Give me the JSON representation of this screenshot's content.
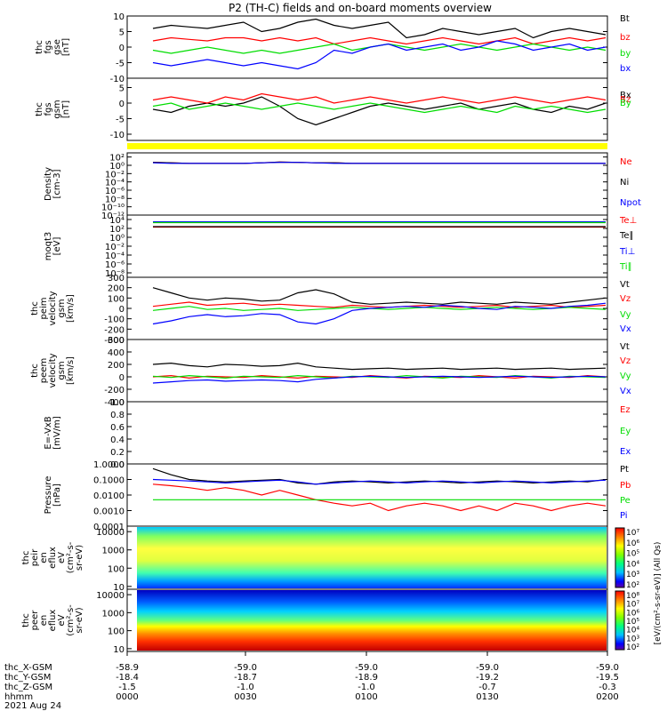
{
  "title": "P2 (TH-C) fields and on-board moments overview",
  "colors": {
    "black": "#000000",
    "red": "#ff0000",
    "green": "#00dd00",
    "blue": "#0000ff",
    "yellow": "#ffff00"
  },
  "chart_data": [
    {
      "type": "line",
      "ylabel": [
        "thc",
        "fgs",
        "gse",
        "[nT]"
      ],
      "ylim": [
        -10,
        10
      ],
      "log": false,
      "yticks": [
        "10",
        "5",
        "0",
        "-5",
        "-10"
      ],
      "yticks_val": [
        10,
        5,
        0,
        -5,
        -10
      ],
      "series": [
        {
          "name": "Bt",
          "color": "#000000",
          "values": [
            6,
            7,
            6.5,
            6,
            7,
            8,
            5,
            6,
            8,
            9,
            7,
            6,
            7,
            8,
            3,
            4,
            6,
            5,
            4,
            5,
            6,
            3,
            5,
            6,
            5,
            4
          ]
        },
        {
          "name": "bz",
          "color": "#ff0000",
          "values": [
            2,
            3,
            2.5,
            2,
            3,
            3,
            2,
            3,
            2,
            3,
            1,
            2,
            3,
            2,
            1,
            2,
            3,
            2,
            1,
            2,
            3,
            1,
            2,
            3,
            2,
            3
          ]
        },
        {
          "name": "by",
          "color": "#00dd00",
          "values": [
            -1,
            -2,
            -1,
            0,
            -1,
            -2,
            -1,
            -2,
            -1,
            0,
            1,
            -1,
            0,
            1,
            0,
            -1,
            0,
            1,
            0,
            -1,
            0,
            1,
            0,
            -1,
            0,
            -1
          ]
        },
        {
          "name": "bx",
          "color": "#0000ff",
          "values": [
            -5,
            -6,
            -5,
            -4,
            -5,
            -6,
            -5,
            -6,
            -7,
            -5,
            -1,
            -2,
            0,
            1,
            -1,
            0,
            1,
            -1,
            0,
            2,
            1,
            -1,
            0,
            1,
            -1,
            0
          ]
        }
      ]
    },
    {
      "type": "line",
      "ylabel": [
        "thc",
        "fgs",
        "gsm",
        "[nT]"
      ],
      "ylim": [
        -12,
        8
      ],
      "log": false,
      "yticks": [
        "5",
        "0",
        "-5",
        "-10"
      ],
      "yticks_val": [
        5,
        0,
        -5,
        -10
      ],
      "series": [
        {
          "name": "Bx",
          "color": "#000000",
          "values": [
            -2,
            -3,
            -1,
            0,
            -1,
            0,
            2,
            -1,
            -5,
            -7,
            -5,
            -3,
            -1,
            0,
            -1,
            -2,
            -1,
            0,
            -2,
            -1,
            0,
            -2,
            -3,
            -1,
            -2,
            0
          ]
        },
        {
          "name": "Bz",
          "color": "#ff0000",
          "values": [
            1,
            2,
            1,
            0,
            2,
            1,
            3,
            2,
            1,
            2,
            0,
            1,
            2,
            1,
            0,
            1,
            2,
            1,
            0,
            1,
            2,
            1,
            0,
            1,
            2,
            1
          ]
        },
        {
          "name": "By",
          "color": "#00dd00",
          "values": [
            -1,
            0,
            -2,
            -1,
            0,
            -1,
            -2,
            -1,
            0,
            -1,
            -2,
            -1,
            0,
            -1,
            -2,
            -3,
            -2,
            -1,
            -2,
            -3,
            -1,
            -2,
            -1,
            -2,
            -3,
            -2
          ]
        }
      ]
    },
    {
      "type": "line",
      "ylabel": [
        "Density",
        "[cm-3]"
      ],
      "log": true,
      "ylim": [
        1e-12,
        1000.0
      ],
      "yticks": [
        "10²",
        "10⁰",
        "10⁻²",
        "10⁻⁴",
        "10⁻⁶",
        "10⁻⁸",
        "10⁻¹⁰",
        "10⁻¹²"
      ],
      "yticks_val": [
        100,
        1,
        0.01,
        0.0001,
        1e-06,
        1e-08,
        1e-10,
        1e-12
      ],
      "series": [
        {
          "name": "Ne",
          "color": "#ff0000",
          "values": [
            5,
            4,
            3,
            3,
            3,
            3,
            4,
            6,
            5,
            4,
            4,
            3,
            3,
            3,
            3,
            3,
            3,
            3,
            3,
            3,
            3,
            3,
            3,
            3,
            3,
            3
          ]
        },
        {
          "name": "Ni",
          "color": "#000000",
          "values": [
            5,
            4,
            3,
            3,
            3,
            3,
            4,
            6,
            5,
            4,
            4,
            3,
            3,
            3,
            3,
            3,
            3,
            3,
            3,
            3,
            3,
            3,
            3,
            3,
            3,
            3
          ]
        },
        {
          "name": "Npot",
          "color": "#0000ff",
          "values": [
            4,
            3,
            3,
            3,
            3,
            3,
            4,
            5,
            5,
            4,
            3,
            3,
            3,
            3,
            3,
            3,
            3,
            3,
            3,
            3,
            3,
            3,
            3,
            3,
            3,
            3
          ]
        }
      ]
    },
    {
      "type": "line",
      "ylabel": [
        "moqt3",
        "[eV]"
      ],
      "log": true,
      "ylim": [
        1e-09,
        100000.0
      ],
      "yticks": [
        "10⁴",
        "10²",
        "10⁰",
        "10⁻²",
        "10⁻⁴",
        "10⁻⁶",
        "10⁻⁸"
      ],
      "yticks_val": [
        10000.0,
        100,
        1,
        0.01,
        0.0001,
        1e-06,
        1e-08
      ],
      "series": [
        {
          "name": "Te⊥",
          "color": "#ff0000",
          "values": [
            200,
            200,
            200,
            200,
            200,
            200,
            200,
            200,
            200,
            200,
            200,
            200,
            200,
            200,
            200,
            200,
            200,
            200,
            200,
            200,
            200,
            200,
            200,
            200,
            200,
            200
          ]
        },
        {
          "name": "Te∥",
          "color": "#000000",
          "values": [
            250,
            250,
            250,
            250,
            250,
            250,
            250,
            250,
            250,
            250,
            250,
            250,
            250,
            250,
            250,
            250,
            250,
            250,
            250,
            250,
            250,
            250,
            250,
            250,
            250,
            250
          ]
        },
        {
          "name": "Ti⊥",
          "color": "#0000ff",
          "values": [
            3000,
            3000,
            3000,
            3000,
            3000,
            3000,
            3000,
            3000,
            3000,
            3000,
            3000,
            3000,
            3000,
            3000,
            3000,
            3000,
            3000,
            3000,
            3000,
            3000,
            3000,
            3000,
            3000,
            3000,
            3000,
            3000
          ]
        },
        {
          "name": "Ti∥",
          "color": "#00dd00",
          "values": [
            2000,
            2000,
            2000,
            2000,
            2000,
            2000,
            2000,
            2000,
            2000,
            2000,
            2000,
            2000,
            2000,
            2000,
            2000,
            2000,
            2000,
            2000,
            2000,
            2000,
            2000,
            2000,
            2000,
            2000,
            2000,
            2000
          ]
        }
      ]
    },
    {
      "type": "line",
      "ylabel": [
        "thc",
        "peim",
        "velocity",
        "gsm",
        "[km/s]"
      ],
      "ylim": [
        -300,
        300
      ],
      "log": false,
      "yticks": [
        "300",
        "200",
        "100",
        "0",
        "-100",
        "-200",
        "-300"
      ],
      "yticks_val": [
        300,
        200,
        100,
        0,
        -100,
        -200,
        -300
      ],
      "series": [
        {
          "name": "Vt",
          "color": "#000000",
          "values": [
            200,
            150,
            100,
            80,
            100,
            90,
            70,
            80,
            150,
            180,
            140,
            60,
            40,
            50,
            60,
            50,
            40,
            60,
            50,
            40,
            60,
            50,
            40,
            60,
            80,
            100
          ]
        },
        {
          "name": "Vz",
          "color": "#ff0000",
          "values": [
            20,
            40,
            60,
            30,
            40,
            50,
            30,
            40,
            30,
            20,
            10,
            30,
            20,
            10,
            20,
            30,
            20,
            10,
            20,
            30,
            10,
            20,
            30,
            10,
            20,
            30
          ]
        },
        {
          "name": "Vy",
          "color": "#00dd00",
          "values": [
            -20,
            0,
            20,
            -10,
            0,
            -20,
            -10,
            0,
            -20,
            -10,
            0,
            10,
            0,
            -10,
            0,
            10,
            0,
            -10,
            0,
            10,
            0,
            -10,
            0,
            10,
            0,
            -10
          ]
        },
        {
          "name": "Vx",
          "color": "#0000ff",
          "values": [
            -150,
            -120,
            -80,
            -60,
            -80,
            -70,
            -50,
            -60,
            -130,
            -150,
            -100,
            -20,
            0,
            10,
            20,
            10,
            30,
            20,
            0,
            -10,
            20,
            10,
            0,
            20,
            30,
            50
          ]
        }
      ]
    },
    {
      "type": "line",
      "ylabel": [
        "thc",
        "peem",
        "velocity",
        "gsm",
        "[km/s]"
      ],
      "ylim": [
        -400,
        600
      ],
      "log": false,
      "yticks": [
        "600",
        "400",
        "200",
        "0",
        "-200",
        "-400"
      ],
      "yticks_val": [
        600,
        400,
        200,
        0,
        -200,
        -400
      ],
      "series": [
        {
          "name": "Vt",
          "color": "#000000",
          "values": [
            200,
            220,
            180,
            160,
            200,
            190,
            170,
            180,
            220,
            160,
            140,
            120,
            130,
            140,
            120,
            130,
            140,
            120,
            130,
            140,
            120,
            130,
            140,
            120,
            130,
            140
          ]
        },
        {
          "name": "Vz",
          "color": "#ff0000",
          "values": [
            0,
            20,
            -20,
            10,
            0,
            -10,
            20,
            0,
            -20,
            10,
            0,
            -10,
            20,
            0,
            -20,
            10,
            0,
            -10,
            20,
            0,
            -20,
            10,
            0,
            -10,
            20,
            0
          ]
        },
        {
          "name": "Vy",
          "color": "#00dd00",
          "values": [
            10,
            -10,
            20,
            0,
            -20,
            10,
            0,
            -10,
            20,
            0,
            -20,
            10,
            0,
            -10,
            20,
            0,
            -20,
            10,
            0,
            -10,
            20,
            0,
            -20,
            10,
            0,
            -10
          ]
        },
        {
          "name": "Vx",
          "color": "#0000ff",
          "values": [
            -100,
            -80,
            -60,
            -50,
            -70,
            -60,
            -50,
            -60,
            -80,
            -40,
            -20,
            0,
            10,
            0,
            -10,
            0,
            10,
            0,
            -10,
            0,
            10,
            0,
            -10,
            0,
            10,
            0
          ]
        }
      ]
    },
    {
      "type": "line",
      "ylabel": [
        "E=-VxB",
        "[mV/m]"
      ],
      "ylim": [
        0,
        1
      ],
      "log": false,
      "yticks": [
        "1.0",
        "0.8",
        "0.6",
        "0.4",
        "0.2",
        "0.0"
      ],
      "yticks_val": [
        1,
        0.8,
        0.6,
        0.4,
        0.2,
        0
      ],
      "series": [
        {
          "name": "Ez",
          "color": "#ff0000",
          "values": []
        },
        {
          "name": "Ey",
          "color": "#00dd00",
          "values": []
        },
        {
          "name": "Ex",
          "color": "#0000ff",
          "values": []
        }
      ]
    },
    {
      "type": "line",
      "ylabel": [
        "Pressure",
        "[nPa]"
      ],
      "log": true,
      "ylim": [
        0.0001,
        1
      ],
      "yticks": [
        "1.0000",
        "0.1000",
        "0.0100",
        "0.0010",
        "0.0001"
      ],
      "yticks_val": [
        1,
        0.1,
        0.01,
        0.001,
        0.0001
      ],
      "series": [
        {
          "name": "Pt",
          "color": "#000000",
          "values": [
            0.5,
            0.2,
            0.1,
            0.08,
            0.07,
            0.08,
            0.09,
            0.1,
            0.06,
            0.05,
            0.07,
            0.08,
            0.07,
            0.06,
            0.07,
            0.08,
            0.07,
            0.06,
            0.07,
            0.08,
            0.07,
            0.06,
            0.07,
            0.08,
            0.07,
            0.1
          ]
        },
        {
          "name": "Pb",
          "color": "#ff0000",
          "values": [
            0.05,
            0.04,
            0.03,
            0.02,
            0.03,
            0.02,
            0.01,
            0.02,
            0.01,
            0.005,
            0.003,
            0.002,
            0.003,
            0.001,
            0.002,
            0.003,
            0.002,
            0.001,
            0.002,
            0.001,
            0.003,
            0.002,
            0.001,
            0.002,
            0.003,
            0.002
          ]
        },
        {
          "name": "Pe",
          "color": "#00dd00",
          "values": [
            0.005,
            0.005,
            0.005,
            0.005,
            0.005,
            0.005,
            0.005,
            0.005,
            0.005,
            0.005,
            0.005,
            0.005,
            0.005,
            0.005,
            0.005,
            0.005,
            0.005,
            0.005,
            0.005,
            0.005,
            0.005,
            0.005,
            0.005,
            0.005,
            0.005,
            0.005
          ]
        },
        {
          "name": "Pi",
          "color": "#0000ff",
          "values": [
            0.1,
            0.09,
            0.08,
            0.07,
            0.06,
            0.07,
            0.08,
            0.09,
            0.07,
            0.05,
            0.06,
            0.07,
            0.08,
            0.07,
            0.06,
            0.07,
            0.08,
            0.07,
            0.06,
            0.07,
            0.08,
            0.07,
            0.06,
            0.07,
            0.08,
            0.09
          ]
        }
      ]
    },
    {
      "type": "heatmap",
      "ylabel": [
        "thc",
        "peir",
        "en",
        "eflux",
        "eV",
        "(cm²-s-",
        "sr-eV)"
      ],
      "log": true,
      "ylim": [
        7,
        20000
      ],
      "yticks": [
        "10000",
        "1000",
        "100",
        "10"
      ],
      "yticks_val": [
        10000,
        1000,
        100,
        10
      ],
      "colorbar": {
        "label": "[eV/(cm²-s-sr-eV)] (All Qs)",
        "ticks": [
          "10⁷",
          "10⁶",
          "10⁵",
          "10⁴",
          "10³",
          "10²"
        ]
      }
    },
    {
      "type": "heatmap",
      "ylabel": [
        "thc",
        "peer",
        "en",
        "eflux",
        "eV",
        "(cm²-s-",
        "sr-eV)"
      ],
      "log": true,
      "ylim": [
        7,
        20000
      ],
      "yticks": [
        "10000",
        "1000",
        "100",
        "10"
      ],
      "yticks_val": [
        10000,
        1000,
        100,
        10
      ],
      "colorbar": {
        "ticks": [
          "10⁸",
          "10⁷",
          "10⁶",
          "10⁵",
          "10⁴",
          "10³",
          "10²"
        ]
      }
    }
  ],
  "xaxis": {
    "tick_labels": [
      [
        "-58.9",
        "-59.0",
        "-59.0",
        "-59.0",
        "-59.0"
      ],
      [
        "-18.4",
        "-18.7",
        "-18.9",
        "-19.2",
        "-19.5"
      ],
      [
        "-1.5",
        "-1.0",
        "-1.0",
        "-0.7",
        "-0.3"
      ],
      [
        "0000",
        "0030",
        "0100",
        "0130",
        "0200"
      ]
    ],
    "row_labels": [
      "thc_X-GSM",
      "thc_Y-GSM",
      "thc_Z-GSM",
      "hhmm"
    ],
    "date": "2021 Aug 24"
  }
}
